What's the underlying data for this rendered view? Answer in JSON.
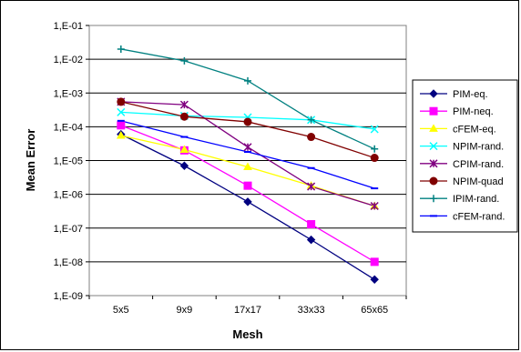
{
  "chart_data": {
    "type": "line",
    "xlabel": "Mesh",
    "ylabel": "Mean Error",
    "y_scale": "log",
    "ylim": [
      1e-09,
      0.1
    ],
    "y_ticks": [
      "1,E-09",
      "1,E-08",
      "1,E-07",
      "1,E-06",
      "1,E-05",
      "1,E-04",
      "1,E-03",
      "1,E-02",
      "1,E-01"
    ],
    "grid": "horizontal",
    "legend": "right",
    "categories": [
      "5x5",
      "9x9",
      "17x17",
      "33x33",
      "65x65"
    ],
    "series": [
      {
        "name": "PIM-eq.",
        "color": "#000080",
        "marker": "diamond",
        "values": [
          6e-05,
          7e-06,
          6e-07,
          4.5e-08,
          3e-09
        ]
      },
      {
        "name": "PIM-neq.",
        "color": "#ff00ff",
        "marker": "square",
        "values": [
          0.00011,
          2e-05,
          1.8e-06,
          1.3e-07,
          1e-08
        ]
      },
      {
        "name": "cFEM-eq.",
        "color": "#ffff00",
        "marker": "triangle",
        "values": [
          5.5e-05,
          2.1e-05,
          6.5e-06,
          1.8e-06,
          4.5e-07
        ]
      },
      {
        "name": "NPIM-rand.",
        "color": "#00ffff",
        "marker": "x",
        "values": [
          0.00027,
          0.00021,
          0.00019,
          0.00016,
          8.5e-05
        ]
      },
      {
        "name": "CPIM-rand.",
        "color": "#800080",
        "marker": "star",
        "values": [
          0.00055,
          0.00045,
          2.5e-05,
          1.7e-06,
          4.5e-07
        ]
      },
      {
        "name": "NPIM-quad",
        "color": "#800000",
        "marker": "circle",
        "values": [
          0.00055,
          0.0002,
          0.00014,
          5e-05,
          1.2e-05
        ]
      },
      {
        "name": "IPIM-rand.",
        "color": "#008080",
        "marker": "plus",
        "values": [
          0.02,
          0.009,
          0.0023,
          0.00016,
          2.2e-05
        ]
      },
      {
        "name": "cFEM-rand.",
        "color": "#0000ff",
        "marker": "dash",
        "values": [
          0.00015,
          5e-05,
          1.8e-05,
          6e-06,
          1.5e-06
        ]
      }
    ]
  }
}
